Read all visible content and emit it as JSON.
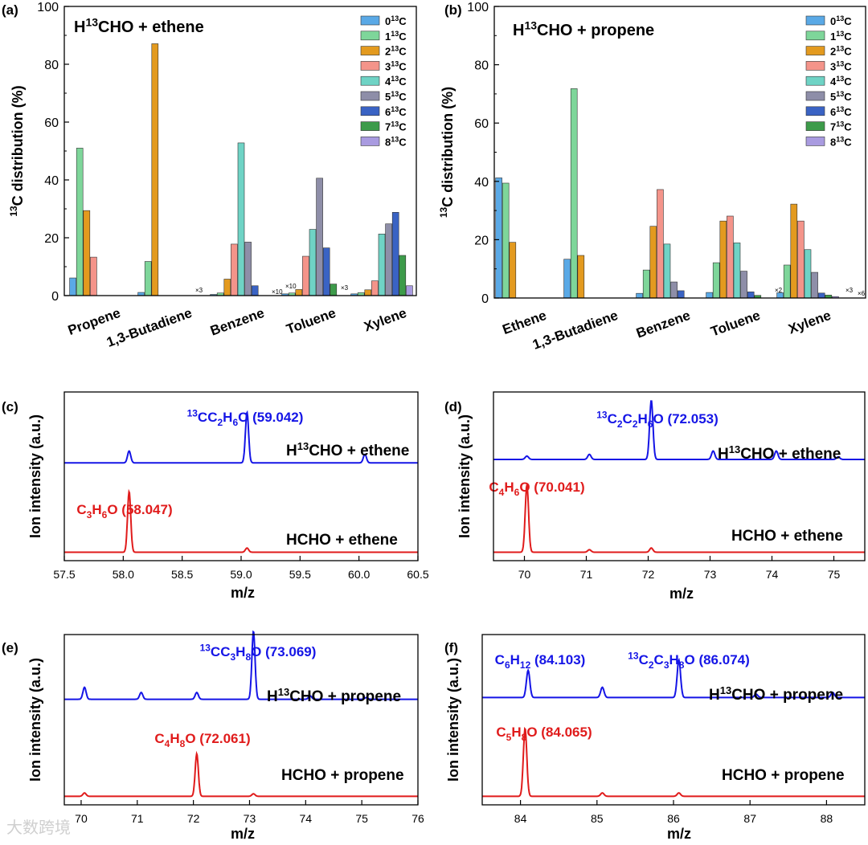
{
  "chart_data": [
    {
      "type": "bar",
      "panel": "(a)",
      "title": "H13CHO + ethene",
      "title_parts": {
        "pre": "H",
        "sup": "13",
        "post": "CHO + ethene"
      },
      "ylabel": "13C distribution (%)",
      "ylabel_parts": {
        "sup": "13",
        "post": "C distribution (%)"
      },
      "ylim": [
        0,
        100
      ],
      "yticks": [
        0,
        20,
        40,
        60,
        80,
        100
      ],
      "legend_position": "top-right",
      "legend": [
        "0 13C",
        "1 13C",
        "2 13C",
        "3 13C",
        "4 13C",
        "5 13C",
        "6 13C",
        "7 13C",
        "8 13C"
      ],
      "categories": [
        "Propene",
        "1,3-Butadiene",
        "Benzene",
        "Toluene",
        "Xylene"
      ],
      "series": [
        {
          "name": "0 13C",
          "color": "#5aa9e6",
          "values": [
            6.1,
            1.1,
            0.4,
            0.6,
            0.6
          ]
        },
        {
          "name": "1 13C",
          "color": "#7ed69a",
          "values": [
            51.0,
            11.8,
            0.9,
            0.9,
            1.0
          ]
        },
        {
          "name": "2 13C",
          "color": "#e39a1f",
          "values": [
            29.4,
            87.1,
            5.7,
            2.1,
            2.0
          ]
        },
        {
          "name": "3 13C",
          "color": "#f4948a",
          "values": [
            13.3,
            0,
            17.8,
            13.6,
            5.1
          ]
        },
        {
          "name": "4 13C",
          "color": "#6fd3c5",
          "values": [
            0,
            0,
            52.8,
            22.9,
            21.3
          ]
        },
        {
          "name": "5 13C",
          "color": "#8e8ea8",
          "values": [
            0,
            0,
            18.5,
            40.6,
            24.8
          ]
        },
        {
          "name": "6 13C",
          "color": "#3a63c4",
          "values": [
            0,
            0,
            3.4,
            16.5,
            28.8
          ]
        },
        {
          "name": "7 13C",
          "color": "#3d9b4a",
          "values": [
            0,
            0,
            0,
            4.0,
            13.9
          ]
        },
        {
          "name": "8 13C",
          "color": "#a99be0",
          "values": [
            0,
            0,
            0,
            0,
            3.4
          ]
        }
      ],
      "annotations": [
        "×3",
        "×10",
        "×10",
        "×3"
      ]
    },
    {
      "type": "bar",
      "panel": "(b)",
      "title": "H13CHO + propene",
      "title_parts": {
        "pre": "H",
        "sup": "13",
        "post": "CHO + propene"
      },
      "ylabel": "13C distribution (%)",
      "ylabel_parts": {
        "sup": "13",
        "post": "C distribution (%)"
      },
      "ylim": [
        0,
        100
      ],
      "yticks": [
        0,
        20,
        40,
        60,
        80,
        100
      ],
      "legend_position": "top-right",
      "legend": [
        "0 13C",
        "1 13C",
        "2 13C",
        "3 13C",
        "4 13C",
        "5 13C",
        "6 13C",
        "7 13C",
        "8 13C"
      ],
      "categories": [
        "Ethene",
        "1,3-Butadiene",
        "Benzene",
        "Toluene",
        "Xylene"
      ],
      "series": [
        {
          "name": "0 13C",
          "color": "#5aa9e6",
          "values": [
            41.2,
            13.3,
            1.6,
            1.9,
            1.8
          ]
        },
        {
          "name": "1 13C",
          "color": "#7ed69a",
          "values": [
            39.4,
            71.8,
            9.6,
            12.1,
            11.3
          ]
        },
        {
          "name": "2 13C",
          "color": "#e39a1f",
          "values": [
            19.1,
            14.6,
            24.6,
            26.4,
            32.2
          ]
        },
        {
          "name": "3 13C",
          "color": "#f4948a",
          "values": [
            0,
            0,
            37.2,
            28.1,
            26.4
          ]
        },
        {
          "name": "4 13C",
          "color": "#6fd3c5",
          "values": [
            0,
            0,
            18.5,
            18.9,
            16.6
          ]
        },
        {
          "name": "5 13C",
          "color": "#8e8ea8",
          "values": [
            0,
            0,
            5.5,
            9.2,
            8.8
          ]
        },
        {
          "name": "6 13C",
          "color": "#3a63c4",
          "values": [
            0,
            0,
            2.5,
            2.1,
            1.7
          ]
        },
        {
          "name": "7 13C",
          "color": "#3d9b4a",
          "values": [
            0,
            0,
            0,
            0.9,
            1.0
          ]
        },
        {
          "name": "8 13C",
          "color": "#a99be0",
          "values": [
            0,
            0,
            0,
            0,
            0.5
          ]
        }
      ],
      "annotations": [
        "×2",
        "×3",
        "×6"
      ]
    },
    {
      "type": "line",
      "panel": "(c)",
      "xlabel": "m/z",
      "ylabel": "Ion intensity (a.u.)",
      "xlim": [
        57.5,
        60.5
      ],
      "xticks": [
        "57.5",
        "58.0",
        "58.5",
        "59.0",
        "59.5",
        "60.0",
        "60.5"
      ],
      "series": [
        {
          "name": "H13CHO + ethene",
          "label_parts": {
            "pre": "H",
            "sup": "13",
            "post": "CHO + ethene"
          },
          "color": "#1515e6",
          "baseline": 0.58,
          "peaks": [
            [
              58.05,
              0.07
            ],
            [
              59.05,
              0.3
            ],
            [
              60.05,
              0.05
            ]
          ],
          "annotation": "13CC2H6O (59.042)",
          "annotation_x": 59.042
        },
        {
          "name": "HCHO + ethene",
          "label_parts": {
            "pre": "HCHO + ethene",
            "sup": "",
            "post": ""
          },
          "color": "#e01b1b",
          "baseline": 0.05,
          "peaks": [
            [
              58.05,
              0.36
            ],
            [
              59.05,
              0.025
            ]
          ],
          "annotation": "C3H6O (58.047)",
          "annotation_x": 58.047
        }
      ]
    },
    {
      "type": "line",
      "panel": "(d)",
      "xlabel": "m/z",
      "ylabel": "Ion intensity (a.u.)",
      "xlim": [
        69.5,
        75.5
      ],
      "xticks": [
        "70",
        "71",
        "72",
        "73",
        "74",
        "75"
      ],
      "series": [
        {
          "name": "H13CHO + ethene",
          "label_parts": {
            "pre": "H",
            "sup": "13",
            "post": "CHO + ethene"
          },
          "color": "#1515e6",
          "baseline": 0.6,
          "peaks": [
            [
              70.04,
              0.02
            ],
            [
              71.05,
              0.03
            ],
            [
              72.05,
              0.35
            ],
            [
              73.05,
              0.05
            ],
            [
              74.07,
              0.05
            ],
            [
              75.07,
              0.015
            ]
          ],
          "annotation": "13C2C2H6O (72.053)",
          "annotation_x": 72.053
        },
        {
          "name": "HCHO + ethene",
          "label_parts": {
            "pre": "HCHO + ethene",
            "sup": "",
            "post": ""
          },
          "color": "#e01b1b",
          "baseline": 0.05,
          "peaks": [
            [
              70.04,
              0.4
            ],
            [
              71.05,
              0.015
            ],
            [
              72.05,
              0.025
            ]
          ],
          "annotation": "C4H6O (70.041)",
          "annotation_x": 70.041
        }
      ]
    },
    {
      "type": "line",
      "panel": "(e)",
      "xlabel": "m/z",
      "ylabel": "Ion intensity (a.u.)",
      "xlim": [
        69.7,
        76.0
      ],
      "xticks": [
        "70",
        "71",
        "72",
        "73",
        "74",
        "75",
        "76"
      ],
      "series": [
        {
          "name": "H13CHO + propene",
          "label_parts": {
            "pre": "H",
            "sup": "13",
            "post": "CHO + propene"
          },
          "color": "#1515e6",
          "baseline": 0.62,
          "peaks": [
            [
              70.06,
              0.07
            ],
            [
              71.07,
              0.04
            ],
            [
              72.06,
              0.04
            ],
            [
              73.07,
              0.4
            ],
            [
              74.08,
              0.02
            ],
            [
              75.08,
              0.01
            ]
          ],
          "annotation": "13CC3H8O (73.069)",
          "annotation_x": 73.069
        },
        {
          "name": "HCHO + propene",
          "label_parts": {
            "pre": "HCHO + propene",
            "sup": "",
            "post": ""
          },
          "color": "#e01b1b",
          "baseline": 0.05,
          "peaks": [
            [
              70.06,
              0.02
            ],
            [
              72.06,
              0.25
            ],
            [
              73.07,
              0.015
            ]
          ],
          "annotation": "C4H8O (72.061)",
          "annotation_x": 72.061
        }
      ]
    },
    {
      "type": "line",
      "panel": "(f)",
      "xlabel": "m/z",
      "ylabel": "Ion intensity (a.u.)",
      "xlim": [
        83.5,
        88.5
      ],
      "xticks": [
        "84",
        "85",
        "86",
        "87",
        "88"
      ],
      "series": [
        {
          "name": "H13CHO + propene",
          "label_parts": {
            "pre": "H",
            "sup": "13",
            "post": "CHO + propene"
          },
          "color": "#1515e6",
          "baseline": 0.63,
          "peaks": [
            [
              84.1,
              0.16
            ],
            [
              85.07,
              0.06
            ],
            [
              86.07,
              0.22
            ],
            [
              87.08,
              0.02
            ],
            [
              88.08,
              0.03
            ]
          ],
          "annotation": "13C2C3H8O (86.074)",
          "annotation_x": 86.074,
          "annotation2": "C6H12 (84.103)",
          "annotation2_x": 84.103
        },
        {
          "name": "HCHO + propene",
          "label_parts": {
            "pre": "HCHO + propene",
            "sup": "",
            "post": ""
          },
          "color": "#e01b1b",
          "baseline": 0.05,
          "peaks": [
            [
              84.06,
              0.4
            ],
            [
              85.07,
              0.02
            ],
            [
              86.07,
              0.02
            ]
          ],
          "annotation": "C5H8O (84.065)",
          "annotation_x": 84.065
        }
      ]
    }
  ],
  "watermark": "大数跨境"
}
